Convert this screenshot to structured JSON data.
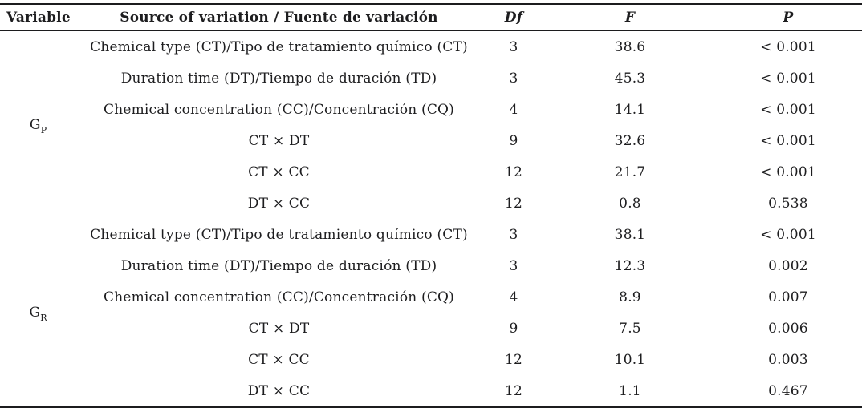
{
  "table": {
    "headers": {
      "variable": "Variable",
      "source": "Source of variation / Fuente de variación",
      "df": "Df",
      "f": "F",
      "p": "P"
    },
    "groups": [
      {
        "variable_base": "G",
        "variable_sub": "P",
        "rows": [
          {
            "source": "Chemical type (CT)/Tipo de tratamiento químico (CT)",
            "df": "3",
            "f": "38.6",
            "p": "< 0.001"
          },
          {
            "source": "Duration time (DT)/Tiempo de duración (TD)",
            "df": "3",
            "f": "45.3",
            "p": "< 0.001"
          },
          {
            "source": "Chemical concentration (CC)/Concentración (CQ)",
            "df": "4",
            "f": "14.1",
            "p": "< 0.001"
          },
          {
            "source": "CT × DT",
            "df": "9",
            "f": "32.6",
            "p": "< 0.001"
          },
          {
            "source": "CT × CC",
            "df": "12",
            "f": "21.7",
            "p": "< 0.001"
          },
          {
            "source": "DT × CC",
            "df": "12",
            "f": "0.8",
            "p": "0.538"
          }
        ]
      },
      {
        "variable_base": "G",
        "variable_sub": "R",
        "rows": [
          {
            "source": "Chemical type (CT)/Tipo de tratamiento químico (CT)",
            "df": "3",
            "f": "38.1",
            "p": "< 0.001"
          },
          {
            "source": "Duration time (DT)/Tiempo de duración (TD)",
            "df": "3",
            "f": "12.3",
            "p": "0.002"
          },
          {
            "source": "Chemical concentration (CC)/Concentración (CQ)",
            "df": "4",
            "f": "8.9",
            "p": "0.007"
          },
          {
            "source": "CT × DT",
            "df": "9",
            "f": "7.5",
            "p": "0.006"
          },
          {
            "source": "CT × CC",
            "df": "12",
            "f": "10.1",
            "p": "0.003"
          },
          {
            "source": "DT × CC",
            "df": "12",
            "f": "1.1",
            "p": "0.467"
          }
        ]
      }
    ]
  },
  "colors": {
    "text": "#1d1d1f",
    "rule": "#1c1c1e",
    "background": "#ffffff"
  }
}
